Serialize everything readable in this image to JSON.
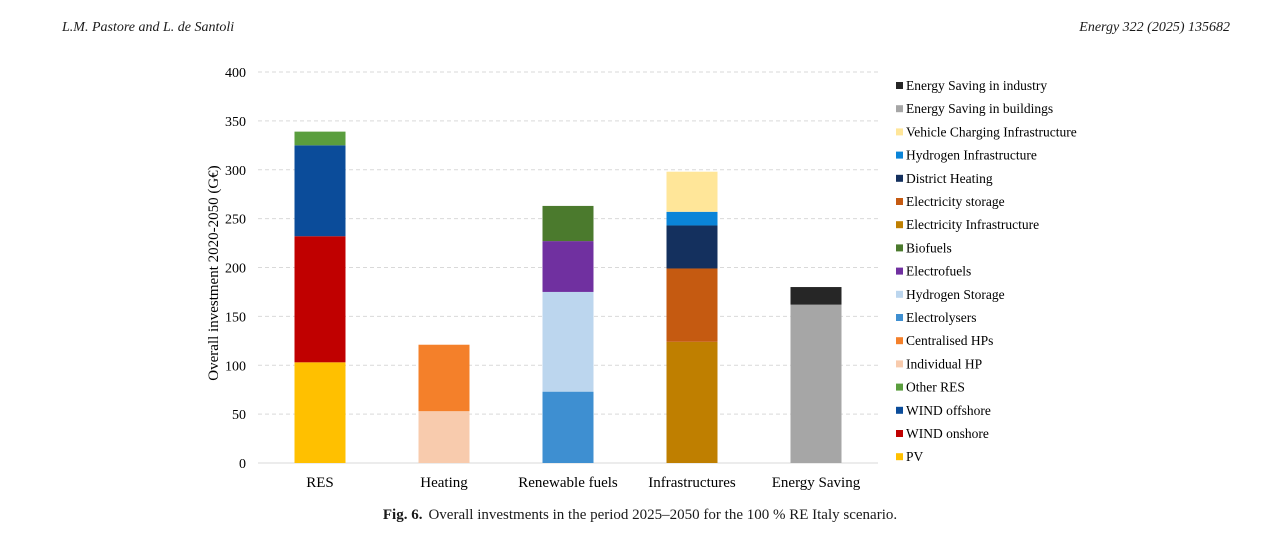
{
  "header": {
    "authors": "L.M. Pastore and L. de Santoli",
    "journal": "Energy 322 (2025) 135682"
  },
  "caption": {
    "label": "Fig. 6.",
    "text": "Overall investments in the period 2025–2050 for the 100 % RE Italy scenario."
  },
  "chart_data": {
    "type": "bar",
    "stacked": true,
    "ylabel": "Overall investment 2020-2050 (G€)",
    "ylim": [
      0,
      400
    ],
    "yticks": [
      0,
      50,
      100,
      150,
      200,
      250,
      300,
      350,
      400
    ],
    "grid": "horizontal dashed",
    "legend_position": "right",
    "categories": [
      "RES",
      "Heating",
      "Renewable fuels",
      "Infrastructures",
      "Energy Saving"
    ],
    "series": [
      {
        "name": "PV",
        "color": "#FFC000",
        "values": [
          103,
          0,
          0,
          0,
          0
        ]
      },
      {
        "name": "WIND onshore",
        "color": "#C00000",
        "values": [
          129,
          0,
          0,
          0,
          0
        ]
      },
      {
        "name": "WIND offshore",
        "color": "#0B4C9A",
        "values": [
          93,
          0,
          0,
          0,
          0
        ]
      },
      {
        "name": "Other RES",
        "color": "#5A9E3E",
        "values": [
          14,
          0,
          0,
          0,
          0
        ]
      },
      {
        "name": "Individual HP",
        "color": "#F8CBAD",
        "values": [
          0,
          53,
          0,
          0,
          0
        ]
      },
      {
        "name": "Centralised HPs",
        "color": "#F4802A",
        "values": [
          0,
          68,
          0,
          0,
          0
        ]
      },
      {
        "name": "Electrolysers",
        "color": "#3E8FD1",
        "values": [
          0,
          0,
          73,
          0,
          0
        ]
      },
      {
        "name": "Hydrogen Storage",
        "color": "#BCD6EE",
        "values": [
          0,
          0,
          102,
          0,
          0
        ]
      },
      {
        "name": "Electrofuels",
        "color": "#7030A0",
        "values": [
          0,
          0,
          52,
          0,
          0
        ]
      },
      {
        "name": "Biofuels",
        "color": "#4B7A2D",
        "values": [
          0,
          0,
          36,
          0,
          0
        ]
      },
      {
        "name": "Electricity Infrastructure",
        "color": "#BF7F00",
        "values": [
          0,
          0,
          0,
          124,
          0
        ]
      },
      {
        "name": "Electricity storage",
        "color": "#C55A11",
        "values": [
          0,
          0,
          0,
          75,
          0
        ]
      },
      {
        "name": "District Heating",
        "color": "#14305E",
        "values": [
          0,
          0,
          0,
          44,
          0
        ]
      },
      {
        "name": "Hydrogen Infrastructure",
        "color": "#0A84D8",
        "values": [
          0,
          0,
          0,
          14,
          0
        ]
      },
      {
        "name": "Vehicle Charging Infrastructure",
        "color": "#FFE699",
        "values": [
          0,
          0,
          0,
          41,
          0
        ]
      },
      {
        "name": "Energy Saving in buildings",
        "color": "#A6A6A6",
        "values": [
          0,
          0,
          0,
          0,
          162
        ]
      },
      {
        "name": "Energy Saving in industry",
        "color": "#262626",
        "values": [
          0,
          0,
          0,
          0,
          18
        ]
      }
    ]
  }
}
